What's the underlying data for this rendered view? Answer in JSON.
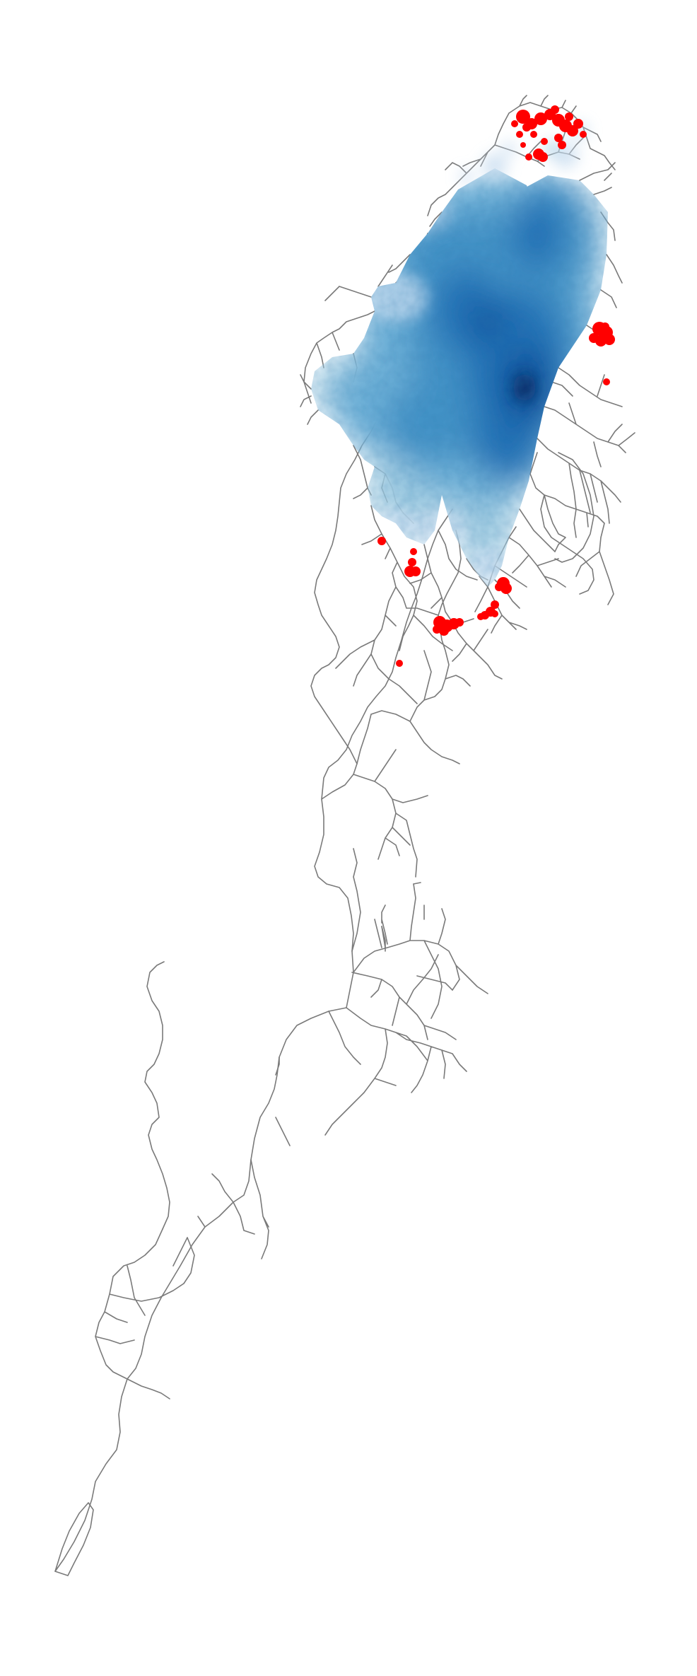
{
  "map": {
    "background_color": "#ffffff",
    "road_color": "#7a7a7a",
    "hotspot_color": "#ff0000",
    "density_colormap": "Blues",
    "density_colors": [
      "#c6dbef",
      "#9ecae1",
      "#6baed6",
      "#4292c6",
      "#2171b5",
      "#08519c",
      "#08306b"
    ],
    "layers": [
      "road-network",
      "density-surface",
      "hotspots"
    ],
    "legend": "none",
    "axes": "off",
    "text_labels": []
  }
}
